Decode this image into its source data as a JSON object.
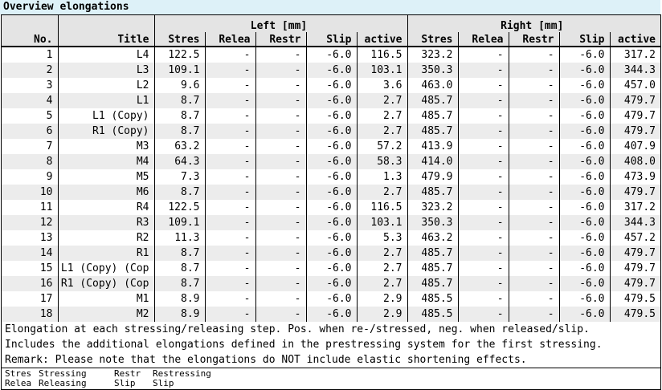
{
  "title": "Overview elongations",
  "table": {
    "group_headers": {
      "left": "Left [mm]",
      "right": "Right [mm]"
    },
    "columns": {
      "no": "No.",
      "title": "Title",
      "sub": [
        "Stres",
        "Relea",
        "Restr",
        "Slip",
        "active"
      ]
    },
    "rows": [
      {
        "no": "1",
        "title": "L4",
        "left": [
          "122.5",
          "-",
          "-",
          "-6.0",
          "116.5"
        ],
        "right": [
          "323.2",
          "-",
          "-",
          "-6.0",
          "317.2"
        ]
      },
      {
        "no": "2",
        "title": "L3",
        "left": [
          "109.1",
          "-",
          "-",
          "-6.0",
          "103.1"
        ],
        "right": [
          "350.3",
          "-",
          "-",
          "-6.0",
          "344.3"
        ]
      },
      {
        "no": "3",
        "title": "L2",
        "left": [
          "9.6",
          "-",
          "-",
          "-6.0",
          "3.6"
        ],
        "right": [
          "463.0",
          "-",
          "-",
          "-6.0",
          "457.0"
        ]
      },
      {
        "no": "4",
        "title": "L1",
        "left": [
          "8.7",
          "-",
          "-",
          "-6.0",
          "2.7"
        ],
        "right": [
          "485.7",
          "-",
          "-",
          "-6.0",
          "479.7"
        ]
      },
      {
        "no": "5",
        "title": "L1 (Copy)",
        "left": [
          "8.7",
          "-",
          "-",
          "-6.0",
          "2.7"
        ],
        "right": [
          "485.7",
          "-",
          "-",
          "-6.0",
          "479.7"
        ]
      },
      {
        "no": "6",
        "title": "R1 (Copy)",
        "left": [
          "8.7",
          "-",
          "-",
          "-6.0",
          "2.7"
        ],
        "right": [
          "485.7",
          "-",
          "-",
          "-6.0",
          "479.7"
        ]
      },
      {
        "no": "7",
        "title": "M3",
        "left": [
          "63.2",
          "-",
          "-",
          "-6.0",
          "57.2"
        ],
        "right": [
          "413.9",
          "-",
          "-",
          "-6.0",
          "407.9"
        ]
      },
      {
        "no": "8",
        "title": "M4",
        "left": [
          "64.3",
          "-",
          "-",
          "-6.0",
          "58.3"
        ],
        "right": [
          "414.0",
          "-",
          "-",
          "-6.0",
          "408.0"
        ]
      },
      {
        "no": "9",
        "title": "M5",
        "left": [
          "7.3",
          "-",
          "-",
          "-6.0",
          "1.3"
        ],
        "right": [
          "479.9",
          "-",
          "-",
          "-6.0",
          "473.9"
        ]
      },
      {
        "no": "10",
        "title": "M6",
        "left": [
          "8.7",
          "-",
          "-",
          "-6.0",
          "2.7"
        ],
        "right": [
          "485.7",
          "-",
          "-",
          "-6.0",
          "479.7"
        ]
      },
      {
        "no": "11",
        "title": "R4",
        "left": [
          "122.5",
          "-",
          "-",
          "-6.0",
          "116.5"
        ],
        "right": [
          "323.2",
          "-",
          "-",
          "-6.0",
          "317.2"
        ]
      },
      {
        "no": "12",
        "title": "R3",
        "left": [
          "109.1",
          "-",
          "-",
          "-6.0",
          "103.1"
        ],
        "right": [
          "350.3",
          "-",
          "-",
          "-6.0",
          "344.3"
        ]
      },
      {
        "no": "13",
        "title": "R2",
        "left": [
          "11.3",
          "-",
          "-",
          "-6.0",
          "5.3"
        ],
        "right": [
          "463.2",
          "-",
          "-",
          "-6.0",
          "457.2"
        ]
      },
      {
        "no": "14",
        "title": "R1",
        "left": [
          "8.7",
          "-",
          "-",
          "-6.0",
          "2.7"
        ],
        "right": [
          "485.7",
          "-",
          "-",
          "-6.0",
          "479.7"
        ]
      },
      {
        "no": "15",
        "title": "L1 (Copy) (Cop",
        "left": [
          "8.7",
          "-",
          "-",
          "-6.0",
          "2.7"
        ],
        "right": [
          "485.7",
          "-",
          "-",
          "-6.0",
          "479.7"
        ]
      },
      {
        "no": "16",
        "title": "R1 (Copy) (Cop",
        "left": [
          "8.7",
          "-",
          "-",
          "-6.0",
          "2.7"
        ],
        "right": [
          "485.7",
          "-",
          "-",
          "-6.0",
          "479.7"
        ]
      },
      {
        "no": "17",
        "title": "M1",
        "left": [
          "8.9",
          "-",
          "-",
          "-6.0",
          "2.9"
        ],
        "right": [
          "485.5",
          "-",
          "-",
          "-6.0",
          "479.5"
        ]
      },
      {
        "no": "18",
        "title": "M2",
        "left": [
          "8.9",
          "-",
          "-",
          "-6.0",
          "2.9"
        ],
        "right": [
          "485.5",
          "-",
          "-",
          "-6.0",
          "479.5"
        ]
      }
    ]
  },
  "notes": [
    "Elongation at each stressing/releasing step. Pos. when re-/stressed, neg. when released/slip.",
    "Includes the additional elongations defined in the prestressing system for the first stressing.",
    "Remark: Please note that the elongations do NOT include elastic shortening effects."
  ],
  "legend": [
    {
      "abbr": "Stres",
      "text": "Stressing"
    },
    {
      "abbr": "Restr",
      "text": "Restressing"
    },
    {
      "abbr": "Relea",
      "text": "Releasing"
    },
    {
      "abbr": "Slip",
      "text": "Slip"
    }
  ],
  "colors": {
    "titlebar_bg": "#ddf1f8",
    "header_bg": "#e4e4e4",
    "stripe_bg": "#ececec",
    "border": "#000000"
  }
}
